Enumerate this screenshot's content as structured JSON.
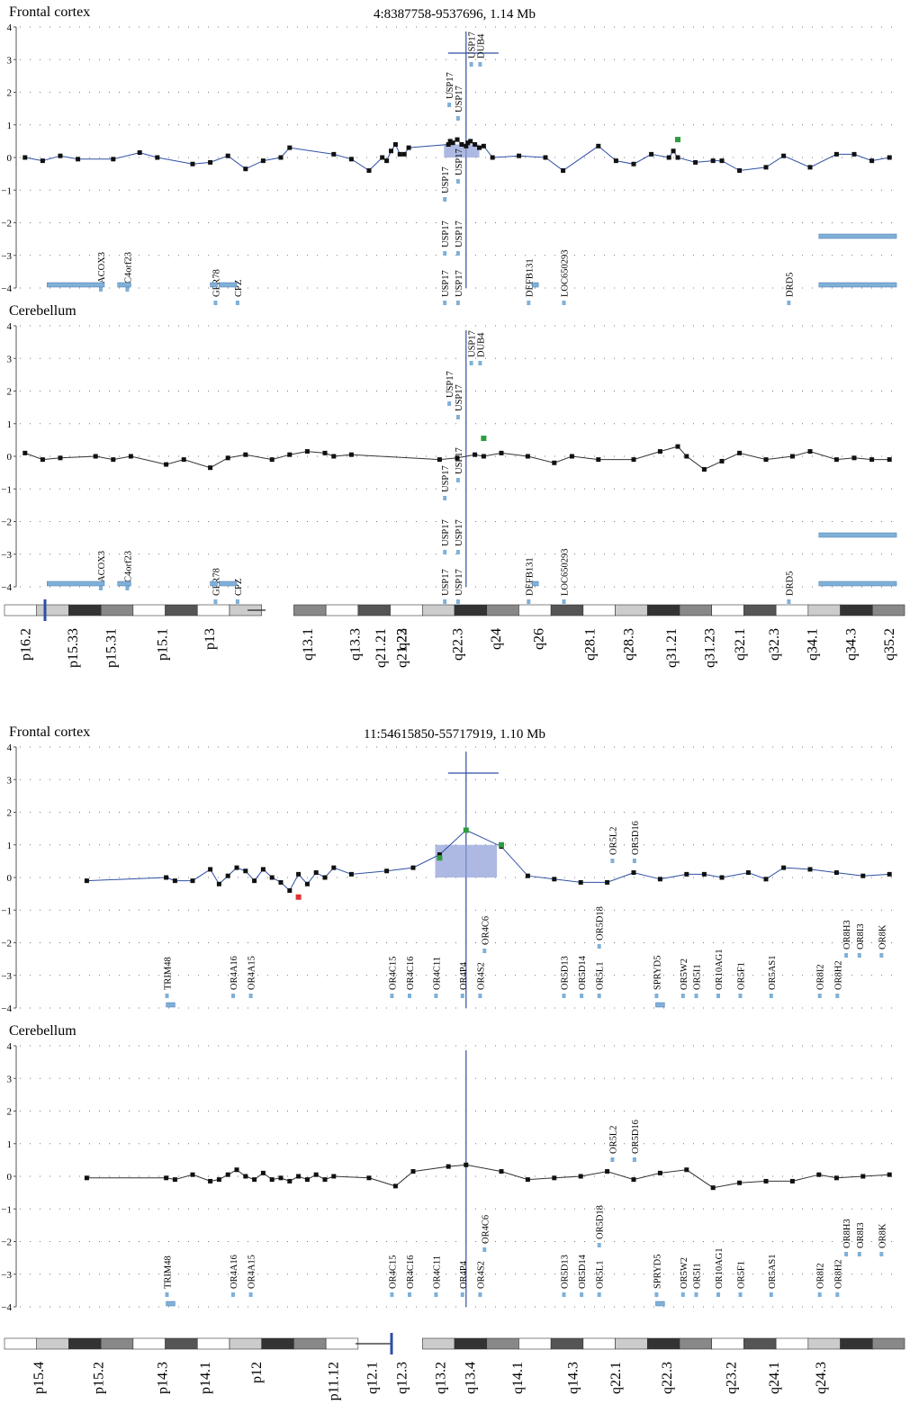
{
  "figures": [
    {
      "region": "4:8387758-9537696, 1.14 Mb",
      "yticks": [
        "4",
        "3",
        "2",
        "1",
        "0",
        "−1",
        "−2",
        "−3",
        "−4"
      ],
      "ideogram_bands": [
        "p16.2",
        "p15.33",
        "p15.31",
        "p15.1",
        "p13",
        "q13.1",
        "q13.3",
        "q21.21",
        "q21.23",
        "q22",
        "q22.3",
        "q24",
        "q26",
        "q28.1",
        "q28.3",
        "q31.21",
        "q31.23",
        "q32.1",
        "q32.3",
        "q34.1",
        "q34.3",
        "q35.2"
      ],
      "panels": [
        {
          "tissue": "Frontal cortex",
          "line_color": "#2e4fa3",
          "genes": [
            "ACOX3",
            "C4orf23",
            "GPR78",
            "CPZ",
            "USP17",
            "USP17",
            "USP17",
            "USP17",
            "USP17",
            "USP17",
            "USP17",
            "USP17",
            "USP17",
            "DUB4",
            "DEFB131",
            "LOC650293",
            "DRD5"
          ]
        },
        {
          "tissue": "Cerebellum",
          "line_color": "#333333",
          "genes": [
            "ACOX3",
            "C4orf23",
            "GPR78",
            "CPZ",
            "USP17",
            "USP17",
            "USP17",
            "USP17",
            "USP17",
            "USP17",
            "USP17",
            "USP17",
            "USP17",
            "DUB4",
            "DEFB131",
            "LOC650293",
            "DRD5"
          ]
        }
      ]
    },
    {
      "region": "11:54615850-55717919, 1.10 Mb",
      "yticks": [
        "4",
        "3",
        "2",
        "1",
        "0",
        "−1",
        "−2",
        "−3",
        "−4"
      ],
      "ideogram_bands": [
        "p15.4",
        "p15.2",
        "p14.3",
        "p14.1",
        "p12",
        "p11.12",
        "q12.1",
        "q12.3",
        "q13.2",
        "q13.4",
        "q14.1",
        "q14.3",
        "q22.1",
        "q22.3",
        "q23.2",
        "q24.1",
        "q24.3"
      ],
      "panels": [
        {
          "tissue": "Frontal cortex",
          "line_color": "#2e4fa3",
          "genes": [
            "TRIM48",
            "OR4A16",
            "OR4A15",
            "OR4C15",
            "OR4C16",
            "OR4C11",
            "OR4P4",
            "OR4S2",
            "OR4C6",
            "OR5D13",
            "OR5D14",
            "OR5L1",
            "OR5D18",
            "OR5L2",
            "OR5D16",
            "SPRYD5",
            "OR5W2",
            "OR5I1",
            "OR10AG1",
            "OR5F1",
            "OR5AS1",
            "OR8I2",
            "OR8H2",
            "OR8H3",
            "OR8I3",
            "OR8K"
          ]
        },
        {
          "tissue": "Cerebellum",
          "line_color": "#333333",
          "genes": [
            "TRIM48",
            "OR4A16",
            "OR4A15",
            "OR4C15",
            "OR4C16",
            "OR4C11",
            "OR4P4",
            "OR4S2",
            "OR4C6",
            "OR5D13",
            "OR5D14",
            "OR5L1",
            "OR5D18",
            "OR5L2",
            "OR5D16",
            "SPRYD5",
            "OR5W2",
            "OR5I1",
            "OR10AG1",
            "OR5F1",
            "OR5AS1",
            "OR8I2",
            "OR8H2",
            "OR8H3",
            "OR8I3",
            "OR8K"
          ]
        }
      ]
    }
  ],
  "colors": {
    "accent_blue": "#2e4fa3",
    "significant_green": "#2e9c3f",
    "significant_red": "#e03030",
    "gene_box": "#7fb0d8",
    "highlight": "#8a9bd6"
  },
  "chart_data": [
    {
      "type": "line",
      "region": "4:8387758-9537696, 1.14 Mb",
      "tissue": "Frontal cortex",
      "ylim": [
        -4,
        4
      ],
      "x": [
        0.01,
        0.03,
        0.05,
        0.07,
        0.11,
        0.14,
        0.16,
        0.2,
        0.22,
        0.24,
        0.26,
        0.28,
        0.3,
        0.31,
        0.36,
        0.38,
        0.4,
        0.415,
        0.42,
        0.425,
        0.43,
        0.435,
        0.44,
        0.445,
        0.49,
        0.492,
        0.495,
        0.5,
        0.505,
        0.51,
        0.512,
        0.515,
        0.52,
        0.525,
        0.53,
        0.54,
        0.57,
        0.6,
        0.62,
        0.66,
        0.68,
        0.7,
        0.72,
        0.74,
        0.745,
        0.75,
        0.77,
        0.79,
        0.8,
        0.82,
        0.85,
        0.87,
        0.9,
        0.93,
        0.95,
        0.97,
        0.99
      ],
      "y": [
        0.0,
        -0.1,
        0.05,
        -0.05,
        -0.05,
        0.15,
        0.0,
        -0.2,
        -0.15,
        0.05,
        -0.35,
        -0.1,
        0.0,
        0.3,
        0.1,
        -0.05,
        -0.4,
        0.0,
        -0.1,
        0.2,
        0.4,
        0.1,
        0.1,
        0.3,
        0.4,
        0.5,
        0.45,
        0.55,
        0.4,
        0.35,
        0.45,
        0.5,
        0.4,
        0.3,
        0.35,
        0.0,
        0.05,
        0.0,
        -0.4,
        0.35,
        -0.1,
        -0.2,
        0.1,
        0.0,
        0.2,
        0.0,
        -0.15,
        -0.1,
        -0.1,
        -0.4,
        -0.3,
        0.05,
        -0.3,
        0.1,
        0.1,
        -0.1,
        0.0
      ],
      "significant": [
        {
          "x": 0.75,
          "y": 0.55
        }
      ]
    },
    {
      "type": "line",
      "region": "4:8387758-9537696, 1.14 Mb",
      "tissue": "Cerebellum",
      "ylim": [
        -4,
        4
      ],
      "x": [
        0.01,
        0.03,
        0.05,
        0.09,
        0.11,
        0.13,
        0.17,
        0.19,
        0.22,
        0.24,
        0.26,
        0.29,
        0.31,
        0.33,
        0.35,
        0.36,
        0.38,
        0.48,
        0.5,
        0.52,
        0.53,
        0.55,
        0.58,
        0.61,
        0.63,
        0.66,
        0.7,
        0.73,
        0.75,
        0.76,
        0.78,
        0.8,
        0.82,
        0.85,
        0.88,
        0.9,
        0.93,
        0.95,
        0.97,
        0.99
      ],
      "y": [
        0.1,
        -0.1,
        -0.05,
        0.0,
        -0.1,
        0.0,
        -0.25,
        -0.1,
        -0.35,
        -0.05,
        0.05,
        -0.1,
        0.05,
        0.15,
        0.1,
        0.0,
        0.05,
        -0.1,
        -0.05,
        0.05,
        0.0,
        0.1,
        0.0,
        -0.2,
        0.0,
        -0.1,
        -0.1,
        0.15,
        0.3,
        0.0,
        -0.4,
        -0.15,
        0.1,
        -0.1,
        0.0,
        0.15,
        -0.1,
        -0.05,
        -0.1,
        -0.1
      ],
      "significant": [
        {
          "x": 0.53,
          "y": 0.55
        }
      ]
    },
    {
      "type": "line",
      "region": "11:54615850-55717919, 1.10 Mb",
      "tissue": "Frontal cortex",
      "ylim": [
        -4,
        4
      ],
      "x": [
        0.08,
        0.17,
        0.18,
        0.2,
        0.22,
        0.23,
        0.24,
        0.25,
        0.26,
        0.27,
        0.28,
        0.29,
        0.3,
        0.31,
        0.32,
        0.33,
        0.34,
        0.35,
        0.36,
        0.38,
        0.42,
        0.45,
        0.48,
        0.51,
        0.55,
        0.58,
        0.61,
        0.64,
        0.67,
        0.7,
        0.73,
        0.76,
        0.78,
        0.8,
        0.83,
        0.85,
        0.87,
        0.9,
        0.93,
        0.96,
        0.99
      ],
      "y": [
        -0.1,
        0.0,
        -0.1,
        -0.1,
        0.25,
        -0.2,
        0.05,
        0.3,
        0.2,
        -0.1,
        0.25,
        0.0,
        -0.15,
        -0.4,
        0.1,
        -0.2,
        0.15,
        0.0,
        0.3,
        0.1,
        0.2,
        0.3,
        0.7,
        1.45,
        0.95,
        0.05,
        -0.05,
        -0.15,
        -0.15,
        0.15,
        -0.05,
        0.1,
        0.1,
        0.0,
        0.15,
        -0.05,
        0.3,
        0.25,
        0.15,
        0.05,
        0.1
      ],
      "significant": [
        {
          "x": 0.48,
          "y": 0.6
        },
        {
          "x": 0.51,
          "y": 1.45
        },
        {
          "x": 0.55,
          "y": 1.0
        }
      ],
      "significant_negative": [
        {
          "x": 0.32,
          "y": -0.6
        }
      ]
    },
    {
      "type": "line",
      "region": "11:54615850-55717919, 1.10 Mb",
      "tissue": "Cerebellum",
      "ylim": [
        -4,
        4
      ],
      "x": [
        0.08,
        0.17,
        0.18,
        0.2,
        0.22,
        0.23,
        0.24,
        0.25,
        0.26,
        0.27,
        0.28,
        0.29,
        0.3,
        0.31,
        0.32,
        0.33,
        0.34,
        0.35,
        0.36,
        0.4,
        0.43,
        0.45,
        0.49,
        0.51,
        0.55,
        0.58,
        0.61,
        0.64,
        0.67,
        0.7,
        0.73,
        0.76,
        0.79,
        0.82,
        0.85,
        0.88,
        0.91,
        0.93,
        0.96,
        0.99
      ],
      "y": [
        -0.05,
        -0.05,
        -0.1,
        0.05,
        -0.15,
        -0.1,
        0.05,
        0.2,
        0.0,
        -0.1,
        0.1,
        -0.1,
        -0.05,
        -0.15,
        0.0,
        -0.1,
        0.05,
        -0.1,
        0.0,
        -0.05,
        -0.3,
        0.15,
        0.3,
        0.35,
        0.15,
        -0.1,
        -0.05,
        0.0,
        0.15,
        -0.1,
        0.1,
        0.2,
        -0.35,
        -0.2,
        -0.15,
        -0.15,
        0.05,
        -0.05,
        0.0,
        0.05
      ],
      "significant": []
    }
  ]
}
